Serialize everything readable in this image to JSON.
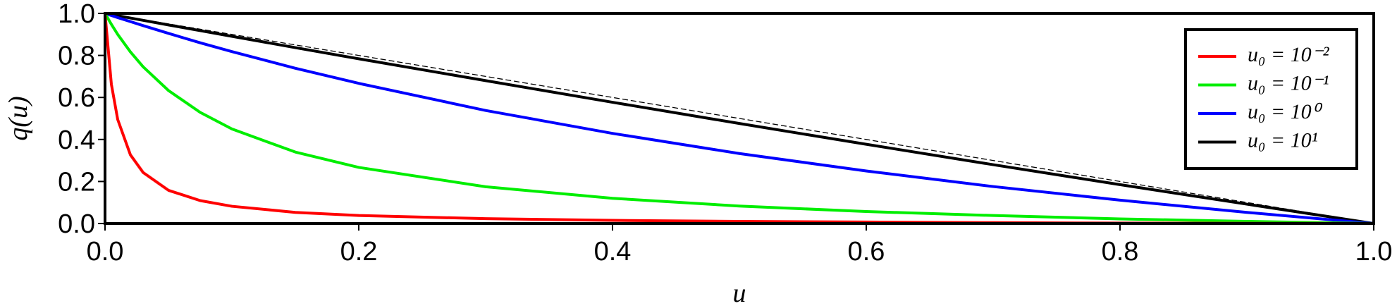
{
  "chart_data": {
    "type": "line",
    "x_label": "u",
    "y_label": "q(u)",
    "x": [
      0,
      0.005,
      0.01,
      0.02,
      0.03,
      0.05,
      0.075,
      0.1,
      0.15,
      0.2,
      0.3,
      0.4,
      0.5,
      0.6,
      0.7,
      0.8,
      0.9,
      1.0
    ],
    "series": [
      {
        "name": "u₀ = 10⁻²",
        "color": "#ff0000",
        "values": [
          1,
          0.663,
          0.495,
          0.327,
          0.243,
          0.158,
          0.109,
          0.082,
          0.053,
          0.038,
          0.023,
          0.015,
          0.01,
          0.007,
          0.004,
          0.002,
          0.001,
          0
        ]
      },
      {
        "name": "u₀ = 10⁻¹",
        "color": "#00ee00",
        "values": [
          1,
          0.948,
          0.9,
          0.817,
          0.746,
          0.633,
          0.529,
          0.45,
          0.34,
          0.267,
          0.175,
          0.12,
          0.083,
          0.057,
          0.038,
          0.022,
          0.01,
          0
        ]
      },
      {
        "name": "u₀ = 10⁰",
        "color": "#0000ff",
        "values": [
          1,
          0.99,
          0.98,
          0.961,
          0.942,
          0.905,
          0.86,
          0.818,
          0.739,
          0.667,
          0.538,
          0.429,
          0.333,
          0.25,
          0.176,
          0.111,
          0.053,
          0
        ]
      },
      {
        "name": "u₀ = 10¹",
        "color": "#000000",
        "values": [
          1,
          0.994,
          0.989,
          0.978,
          0.967,
          0.945,
          0.918,
          0.891,
          0.837,
          0.784,
          0.68,
          0.577,
          0.476,
          0.377,
          0.28,
          0.185,
          0.092,
          0
        ]
      },
      {
        "color": "#000000",
        "dashed": true,
        "values": [
          1,
          0.995,
          0.99,
          0.98,
          0.97,
          0.95,
          0.925,
          0.9,
          0.85,
          0.8,
          0.7,
          0.6,
          0.5,
          0.4,
          0.3,
          0.2,
          0.1,
          0
        ]
      }
    ],
    "xlim": [
      0,
      1
    ],
    "ylim": [
      0,
      1
    ],
    "xticks": [
      {
        "value": 0,
        "label": "0.0"
      },
      0.2,
      0.4,
      0.6,
      0.8,
      {
        "value": 1,
        "label": "1.0"
      }
    ],
    "yticks": [
      {
        "value": 0,
        "label": "0.0"
      },
      0.2,
      0.4,
      0.6,
      0.8,
      {
        "value": 1,
        "label": "1.0"
      }
    ],
    "legend": "upper-right",
    "grid": false
  }
}
